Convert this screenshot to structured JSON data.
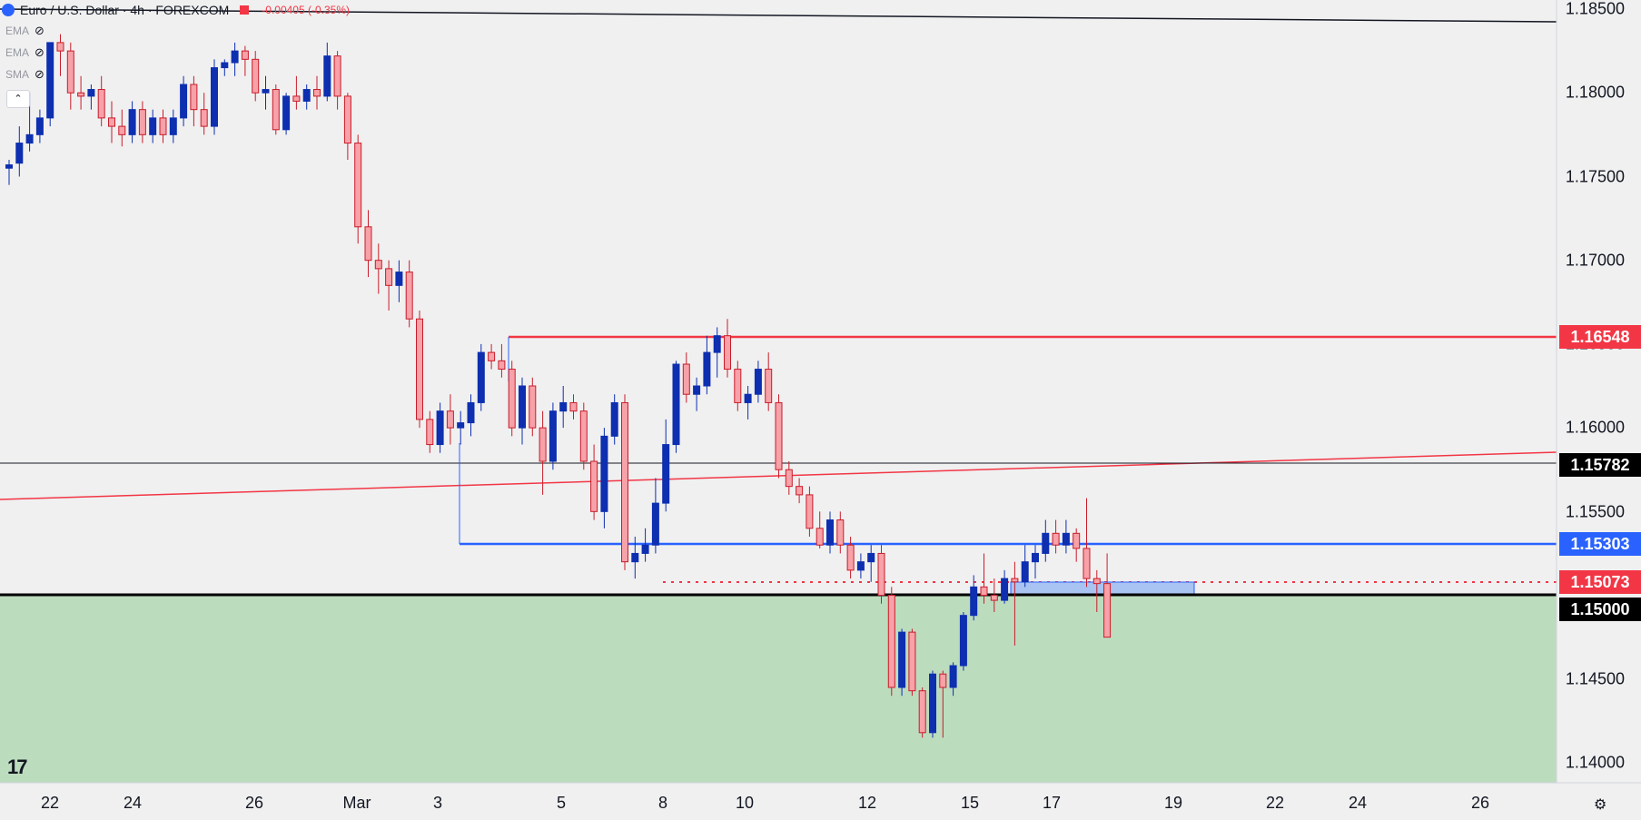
{
  "legend": {
    "title": "Euro / U.S. Dollar · 4h · FOREXCOM",
    "change": "-0.00405 (-0.35%)",
    "indicators": [
      {
        "label": "EMA"
      },
      {
        "label": "EMA"
      },
      {
        "label": "SMA"
      }
    ],
    "collapse_glyph": "⌃"
  },
  "y_axis": {
    "labels": [
      "1.18500",
      "1.18000",
      "1.17500",
      "1.17000",
      "1.16500",
      "1.16000",
      "1.15500",
      "1.14500",
      "1.14000"
    ]
  },
  "price_tags": [
    {
      "text": "1.16548",
      "color": "#f23645"
    },
    {
      "text": "1.15782",
      "color": "#000000"
    },
    {
      "text": "1.15303",
      "color": "#2962ff"
    },
    {
      "text": "1.15073",
      "color": "#f23645"
    },
    {
      "text": "1.15000",
      "color": "#000000"
    }
  ],
  "x_axis": {
    "labels": [
      "22",
      "24",
      "26",
      "Mar",
      "3",
      "5",
      "8",
      "10",
      "12",
      "15",
      "17",
      "19",
      "22",
      "24",
      "26"
    ]
  },
  "colors": {
    "up": "#0d2fb0",
    "down": "#f7a1a8",
    "down_border": "#c91c2a",
    "resistance": "#f23645",
    "support": "#2962ff",
    "zone": "#bcdcbe"
  },
  "brand": {
    "logo": "17"
  },
  "icons": {
    "settings": "gear-icon",
    "visibility": "eye-off-icon",
    "logo": "tradingview-logo"
  },
  "chart_data": {
    "type": "candlestick",
    "symbol": "EUR/USD",
    "timeframe": "4h",
    "ylim": [
      1.138,
      1.186
    ],
    "levels": [
      1.16548,
      1.15782,
      1.15303,
      1.15073,
      1.15
    ],
    "candles": [
      [
        1.1755,
        1.176,
        1.1745,
        1.1757
      ],
      [
        1.1758,
        1.178,
        1.175,
        1.177
      ],
      [
        1.177,
        1.18,
        1.1765,
        1.1775
      ],
      [
        1.1775,
        1.179,
        1.177,
        1.1785
      ],
      [
        1.1785,
        1.183,
        1.178,
        1.183
      ],
      [
        1.183,
        1.1835,
        1.181,
        1.1825
      ],
      [
        1.1825,
        1.183,
        1.179,
        1.18
      ],
      [
        1.18,
        1.181,
        1.179,
        1.1798
      ],
      [
        1.1798,
        1.1805,
        1.179,
        1.1802
      ],
      [
        1.1802,
        1.181,
        1.178,
        1.1785
      ],
      [
        1.1785,
        1.1795,
        1.177,
        1.178
      ],
      [
        1.178,
        1.179,
        1.1768,
        1.1775
      ],
      [
        1.1775,
        1.1795,
        1.177,
        1.179
      ],
      [
        1.179,
        1.1795,
        1.177,
        1.1775
      ],
      [
        1.1775,
        1.179,
        1.177,
        1.1785
      ],
      [
        1.1785,
        1.179,
        1.177,
        1.1775
      ],
      [
        1.1775,
        1.179,
        1.177,
        1.1785
      ],
      [
        1.1785,
        1.181,
        1.178,
        1.1805
      ],
      [
        1.1805,
        1.181,
        1.178,
        1.179
      ],
      [
        1.179,
        1.18,
        1.1775,
        1.178
      ],
      [
        1.178,
        1.182,
        1.1775,
        1.1815
      ],
      [
        1.1815,
        1.182,
        1.181,
        1.1818
      ],
      [
        1.1818,
        1.183,
        1.181,
        1.1825
      ],
      [
        1.1825,
        1.1828,
        1.181,
        1.182
      ],
      [
        1.182,
        1.1825,
        1.1795,
        1.18
      ],
      [
        1.18,
        1.181,
        1.179,
        1.1802
      ],
      [
        1.1802,
        1.1805,
        1.1775,
        1.1778
      ],
      [
        1.1778,
        1.18,
        1.1775,
        1.1798
      ],
      [
        1.1798,
        1.181,
        1.179,
        1.1795
      ],
      [
        1.1795,
        1.1805,
        1.179,
        1.1802
      ],
      [
        1.1802,
        1.181,
        1.179,
        1.1798
      ],
      [
        1.1798,
        1.183,
        1.1795,
        1.1822
      ],
      [
        1.1822,
        1.1825,
        1.179,
        1.1798
      ],
      [
        1.1798,
        1.18,
        1.176,
        1.177
      ],
      [
        1.177,
        1.1775,
        1.171,
        1.172
      ],
      [
        1.172,
        1.173,
        1.169,
        1.17
      ],
      [
        1.17,
        1.171,
        1.168,
        1.1695
      ],
      [
        1.1695,
        1.17,
        1.167,
        1.1685
      ],
      [
        1.1685,
        1.17,
        1.1675,
        1.1693
      ],
      [
        1.1693,
        1.17,
        1.166,
        1.1665
      ],
      [
        1.1665,
        1.167,
        1.16,
        1.1605
      ],
      [
        1.1605,
        1.161,
        1.1585,
        1.159
      ],
      [
        1.159,
        1.1615,
        1.1585,
        1.161
      ],
      [
        1.161,
        1.162,
        1.159,
        1.16
      ],
      [
        1.16,
        1.161,
        1.159,
        1.1603
      ],
      [
        1.1603,
        1.162,
        1.1595,
        1.1615
      ],
      [
        1.1615,
        1.165,
        1.161,
        1.1645
      ],
      [
        1.1645,
        1.165,
        1.1635,
        1.164
      ],
      [
        1.164,
        1.165,
        1.163,
        1.1635
      ],
      [
        1.1635,
        1.164,
        1.1595,
        1.16
      ],
      [
        1.16,
        1.163,
        1.159,
        1.1625
      ],
      [
        1.1625,
        1.163,
        1.1595,
        1.16
      ],
      [
        1.16,
        1.161,
        1.156,
        1.158
      ],
      [
        1.158,
        1.1615,
        1.1575,
        1.161
      ],
      [
        1.161,
        1.1625,
        1.16,
        1.1615
      ],
      [
        1.1615,
        1.162,
        1.1605,
        1.161
      ],
      [
        1.161,
        1.1615,
        1.1575,
        1.158
      ],
      [
        1.158,
        1.159,
        1.1545,
        1.155
      ],
      [
        1.155,
        1.16,
        1.154,
        1.1595
      ],
      [
        1.1595,
        1.162,
        1.159,
        1.1615
      ],
      [
        1.1615,
        1.162,
        1.1515,
        1.152
      ],
      [
        1.152,
        1.1535,
        1.151,
        1.1525
      ],
      [
        1.1525,
        1.154,
        1.152,
        1.153
      ],
      [
        1.153,
        1.157,
        1.1525,
        1.1555
      ],
      [
        1.1555,
        1.1605,
        1.155,
        1.159
      ],
      [
        1.159,
        1.164,
        1.1585,
        1.1638
      ],
      [
        1.1638,
        1.1645,
        1.1615,
        1.162
      ],
      [
        1.162,
        1.163,
        1.161,
        1.1625
      ],
      [
        1.1625,
        1.1655,
        1.162,
        1.1645
      ],
      [
        1.1645,
        1.166,
        1.163,
        1.1655
      ],
      [
        1.1655,
        1.1665,
        1.163,
        1.1635
      ],
      [
        1.1635,
        1.164,
        1.161,
        1.1615
      ],
      [
        1.1615,
        1.1625,
        1.1605,
        1.162
      ],
      [
        1.162,
        1.164,
        1.1615,
        1.1635
      ],
      [
        1.1635,
        1.1645,
        1.161,
        1.1615
      ],
      [
        1.1615,
        1.162,
        1.157,
        1.1575
      ],
      [
        1.1575,
        1.158,
        1.156,
        1.1565
      ],
      [
        1.1565,
        1.157,
        1.1555,
        1.156
      ],
      [
        1.156,
        1.1565,
        1.1535,
        1.154
      ],
      [
        1.154,
        1.155,
        1.1528,
        1.153
      ],
      [
        1.153,
        1.155,
        1.1525,
        1.1545
      ],
      [
        1.1545,
        1.155,
        1.1525,
        1.153
      ],
      [
        1.153,
        1.1535,
        1.151,
        1.1515
      ],
      [
        1.1515,
        1.1525,
        1.151,
        1.152
      ],
      [
        1.152,
        1.153,
        1.1508,
        1.1525
      ],
      [
        1.1525,
        1.153,
        1.1495,
        1.15
      ],
      [
        1.15,
        1.1505,
        1.144,
        1.1445
      ],
      [
        1.1445,
        1.148,
        1.144,
        1.1478
      ],
      [
        1.1478,
        1.148,
        1.144,
        1.1443
      ],
      [
        1.1443,
        1.1445,
        1.1415,
        1.1418
      ],
      [
        1.1418,
        1.1455,
        1.1415,
        1.1453
      ],
      [
        1.1453,
        1.1455,
        1.1415,
        1.1445
      ],
      [
        1.1445,
        1.146,
        1.144,
        1.1458
      ],
      [
        1.1458,
        1.149,
        1.1455,
        1.1488
      ],
      [
        1.1488,
        1.1512,
        1.1485,
        1.1505
      ],
      [
        1.1505,
        1.1525,
        1.1495,
        1.15
      ],
      [
        1.15,
        1.151,
        1.149,
        1.1497
      ],
      [
        1.1497,
        1.1515,
        1.1495,
        1.151
      ],
      [
        1.151,
        1.152,
        1.147,
        1.1508
      ],
      [
        1.1508,
        1.153,
        1.1505,
        1.152
      ],
      [
        1.152,
        1.153,
        1.151,
        1.1525
      ],
      [
        1.1525,
        1.1545,
        1.152,
        1.1537
      ],
      [
        1.1537,
        1.1545,
        1.1525,
        1.153
      ],
      [
        1.153,
        1.1545,
        1.1525,
        1.1537
      ],
      [
        1.1537,
        1.154,
        1.152,
        1.1528
      ],
      [
        1.1528,
        1.1558,
        1.1505,
        1.151
      ],
      [
        1.151,
        1.1515,
        1.149,
        1.1507
      ],
      [
        1.1507,
        1.1525,
        1.1475,
        1.1475
      ]
    ]
  }
}
